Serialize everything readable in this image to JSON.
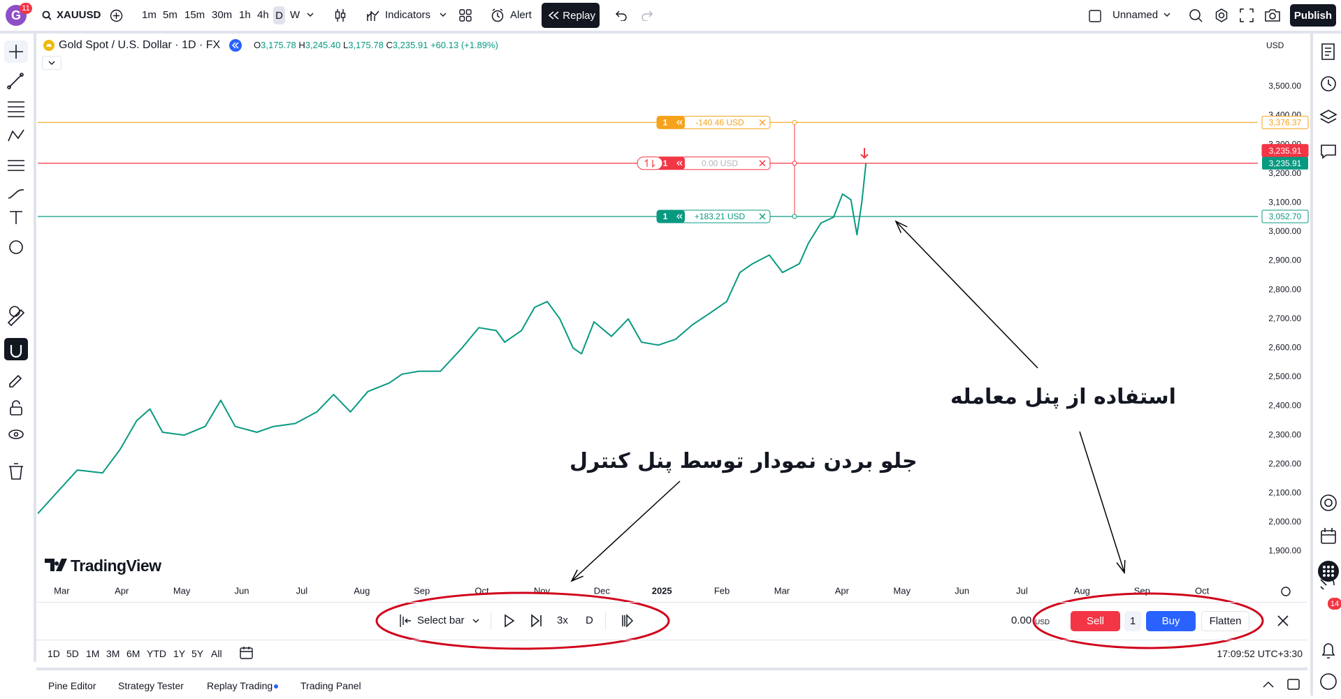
{
  "toolbar": {
    "avatar": "G",
    "avatar_badge": "11",
    "symbol": "XAUUSD",
    "intervals": [
      "1m",
      "5m",
      "15m",
      "30m",
      "1h",
      "4h",
      "D",
      "W"
    ],
    "indicators": "Indicators",
    "alert": "Alert",
    "replay": "Replay",
    "layout_name": "Unnamed",
    "publish": "Publish"
  },
  "legend": {
    "title": "Gold Spot / U.S. Dollar · 1D · FX",
    "open_label": "O",
    "open": "3,175.78",
    "high_label": "H",
    "high": "3,245.40",
    "low_label": "L",
    "low": "3,175.78",
    "close_label": "C",
    "close": "3,235.91",
    "change": "+60.13 (+1.89%)"
  },
  "currency": "USD",
  "chart_data": {
    "type": "line",
    "x": [
      -0.4,
      0.26,
      0.68,
      0.97,
      1.25,
      1.47,
      1.68,
      2.04,
      2.39,
      2.65,
      2.89,
      3.25,
      3.53,
      3.89,
      4.25,
      4.53,
      4.81,
      5.1,
      5.46,
      5.67,
      5.95,
      6.31,
      6.67,
      6.95,
      7.24,
      7.38,
      7.66,
      7.88,
      8.09,
      8.3,
      8.52,
      8.66,
      8.87,
      9.16,
      9.44,
      9.66,
      9.94,
      10.23,
      10.51,
      10.8,
      11.08,
      11.3,
      11.51,
      11.79,
      12.01,
      12.29,
      12.44,
      12.65,
      12.86,
      13.01,
      13.15,
      13.25,
      13.33,
      13.4
    ],
    "series": [
      {
        "color": "#089981",
        "values": [
          2030,
          2180,
          2170,
          2250,
          2350,
          2390,
          2310,
          2300,
          2330,
          2420,
          2330,
          2310,
          2330,
          2340,
          2380,
          2440,
          2380,
          2450,
          2480,
          2510,
          2520,
          2520,
          2600,
          2670,
          2660,
          2620,
          2660,
          2740,
          2760,
          2700,
          2600,
          2580,
          2690,
          2640,
          2700,
          2620,
          2610,
          2630,
          2680,
          2720,
          2760,
          2860,
          2890,
          2920,
          2860,
          2890,
          2960,
          3030,
          3050,
          3130,
          3110,
          2990,
          3100,
          3235.91
        ]
      }
    ],
    "xlim": [
      -0.4,
      19.93
    ],
    "xticks": [
      {
        "value": 0,
        "label": "Mar"
      },
      {
        "value": 1,
        "label": "Apr"
      },
      {
        "value": 2,
        "label": "May"
      },
      {
        "value": 3,
        "label": "Jun"
      },
      {
        "value": 4,
        "label": "Jul"
      },
      {
        "value": 5,
        "label": "Aug"
      },
      {
        "value": 6,
        "label": "Sep"
      },
      {
        "value": 7,
        "label": "Oct"
      },
      {
        "value": 8,
        "label": "Nov"
      },
      {
        "value": 9,
        "label": "Dec"
      },
      {
        "value": 10,
        "label": "2025"
      },
      {
        "value": 11,
        "label": "Feb"
      },
      {
        "value": 12,
        "label": "Mar"
      },
      {
        "value": 13,
        "label": "Apr"
      },
      {
        "value": 14,
        "label": "May"
      },
      {
        "value": 15,
        "label": "Jun"
      },
      {
        "value": 16,
        "label": "Jul"
      },
      {
        "value": 17,
        "label": "Aug"
      },
      {
        "value": 18,
        "label": "Sep"
      },
      {
        "value": 19,
        "label": "Oct"
      }
    ],
    "ylim": [
      1798,
      3680
    ],
    "yticks": [
      {
        "value": 1900,
        "label": "1,900.00"
      },
      {
        "value": 2000,
        "label": "2,000.00"
      },
      {
        "value": 2100,
        "label": "2,100.00"
      },
      {
        "value": 2200,
        "label": "2,200.00"
      },
      {
        "value": 2300,
        "label": "2,300.00"
      },
      {
        "value": 2400,
        "label": "2,400.00"
      },
      {
        "value": 2500,
        "label": "2,500.00"
      },
      {
        "value": 2600,
        "label": "2,600.00"
      },
      {
        "value": 2700,
        "label": "2,700.00"
      },
      {
        "value": 2800,
        "label": "2,800.00"
      },
      {
        "value": 2900,
        "label": "2,900.00"
      },
      {
        "value": 3000,
        "label": "3,000.00"
      },
      {
        "value": 3100,
        "label": "3,100.00"
      },
      {
        "value": 3200,
        "label": "3,200.00"
      },
      {
        "value": 3300,
        "label": "3,300.00"
      },
      {
        "value": 3400,
        "label": "3,400.00"
      },
      {
        "value": 3500,
        "label": "3,500.00"
      }
    ],
    "price_lines": [
      {
        "value": 3376.37,
        "label": "3,376.37",
        "color": "#f7a21b",
        "qty": "1",
        "pnl": "-140.46 USD"
      },
      {
        "value": 3235.91,
        "label": "3,235.91",
        "color": "#f23645",
        "qty": "1",
        "pnl": "0.00 USD"
      },
      {
        "value": 3052.7,
        "label": "3,052.70",
        "color": "#089981",
        "qty": "1",
        "pnl": "+183.21 USD"
      }
    ],
    "last_price": {
      "value": 3235.91,
      "label": "3,235.91",
      "color": "#089981"
    },
    "grid": false
  },
  "watermark": "TradingView",
  "annotations": [
    "استفاده از پنل معامله",
    "جلو بردن نمودار توسط پنل کنترل"
  ],
  "replay_bar": {
    "select": "Select bar",
    "speed": "3x",
    "interval": "D",
    "pnl": "0.00",
    "pnl_unit": "USD",
    "sell": "Sell",
    "qty": "1",
    "buy": "Buy",
    "flatten": "Flatten"
  },
  "ranges": [
    "1D",
    "5D",
    "1M",
    "3M",
    "6M",
    "YTD",
    "1Y",
    "5Y",
    "All"
  ],
  "clock": "17:09:52 UTC+3:30",
  "tabs": [
    "Pine Editor",
    "Strategy Tester",
    "Replay Trading",
    "Trading Panel"
  ],
  "alerts_badge": "14"
}
